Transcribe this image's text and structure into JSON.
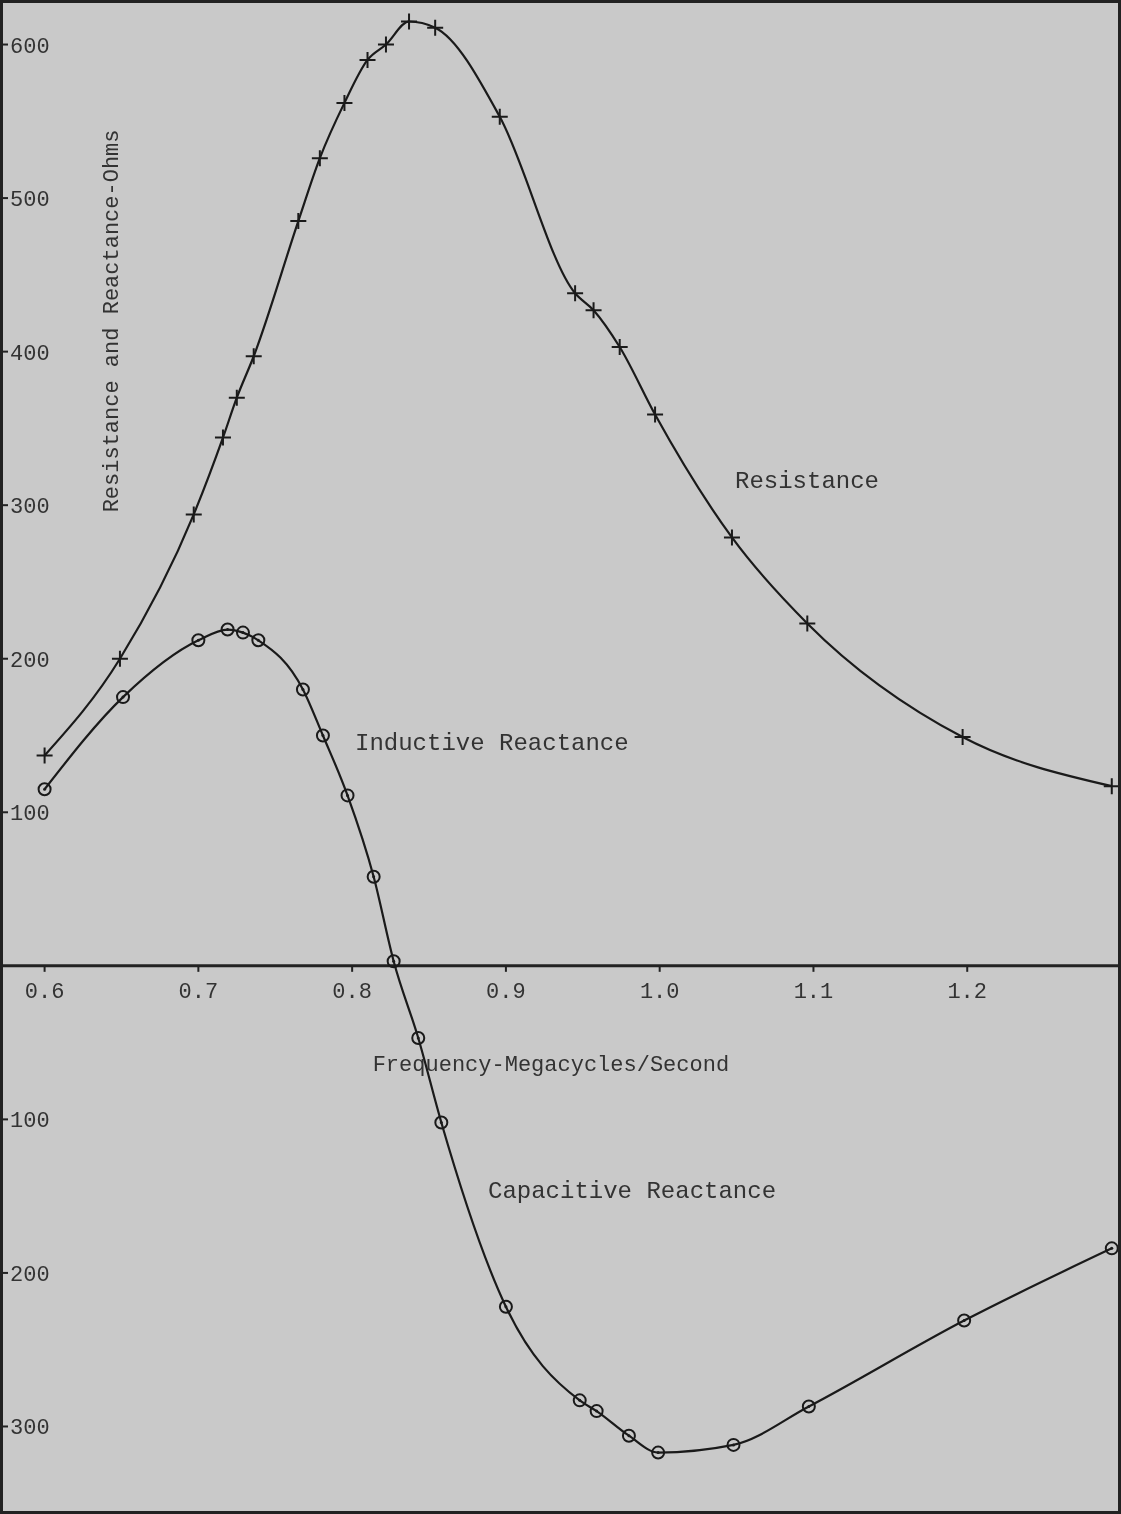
{
  "chart_data": {
    "type": "line",
    "xlabel": "Frequency-Megacycles/Second",
    "ylabel": "Resistance and Reactance-Ohms",
    "xlim": [
      0.571,
      1.3
    ],
    "ylim": [
      -357,
      629
    ],
    "xticks": [
      0.6,
      0.7,
      0.8,
      0.9,
      {
        "value": 1.0,
        "label": "1.0"
      },
      1.1,
      1.2
    ],
    "yticks": [
      {
        "value": -300,
        "label": "300"
      },
      {
        "value": -200,
        "label": "200"
      },
      {
        "value": -100,
        "label": "100"
      },
      100,
      200,
      300,
      400,
      500,
      600
    ],
    "grid": false,
    "line_style": "solid",
    "series": [
      {
        "color": "#1a1a1a",
        "marker": "cross",
        "x": [
          0.6,
          0.649,
          0.697,
          0.716,
          0.725,
          0.736,
          0.765,
          0.779,
          0.795,
          0.81,
          0.822,
          0.837,
          0.854,
          0.896,
          0.945,
          0.957,
          0.974,
          0.997,
          1.047,
          1.096,
          1.197,
          1.294
        ],
        "values": [
          137,
          200,
          294,
          344,
          370,
          397,
          485,
          526,
          562,
          590,
          600,
          615,
          611,
          553,
          438,
          427,
          403,
          359,
          279,
          223,
          149,
          117
        ]
      },
      {
        "color": "#1a1a1a",
        "marker": "circle",
        "x": [
          0.6,
          0.651,
          0.7,
          0.719,
          0.729,
          0.739,
          0.768,
          0.781,
          0.797,
          0.814,
          0.827,
          0.843,
          0.858,
          0.9,
          0.948,
          0.959,
          0.98,
          0.999,
          1.048,
          1.097,
          1.198,
          1.294
        ],
        "values": [
          115,
          175,
          212,
          219,
          217,
          212,
          180,
          150,
          111,
          58,
          3,
          -47,
          -102,
          -222,
          -283,
          -290,
          -306,
          -317,
          -312,
          -287,
          -231,
          -184
        ]
      }
    ],
    "annotations": [
      "Resistance",
      "Inductive Reactance",
      "Capacitive Reactance"
    ]
  }
}
